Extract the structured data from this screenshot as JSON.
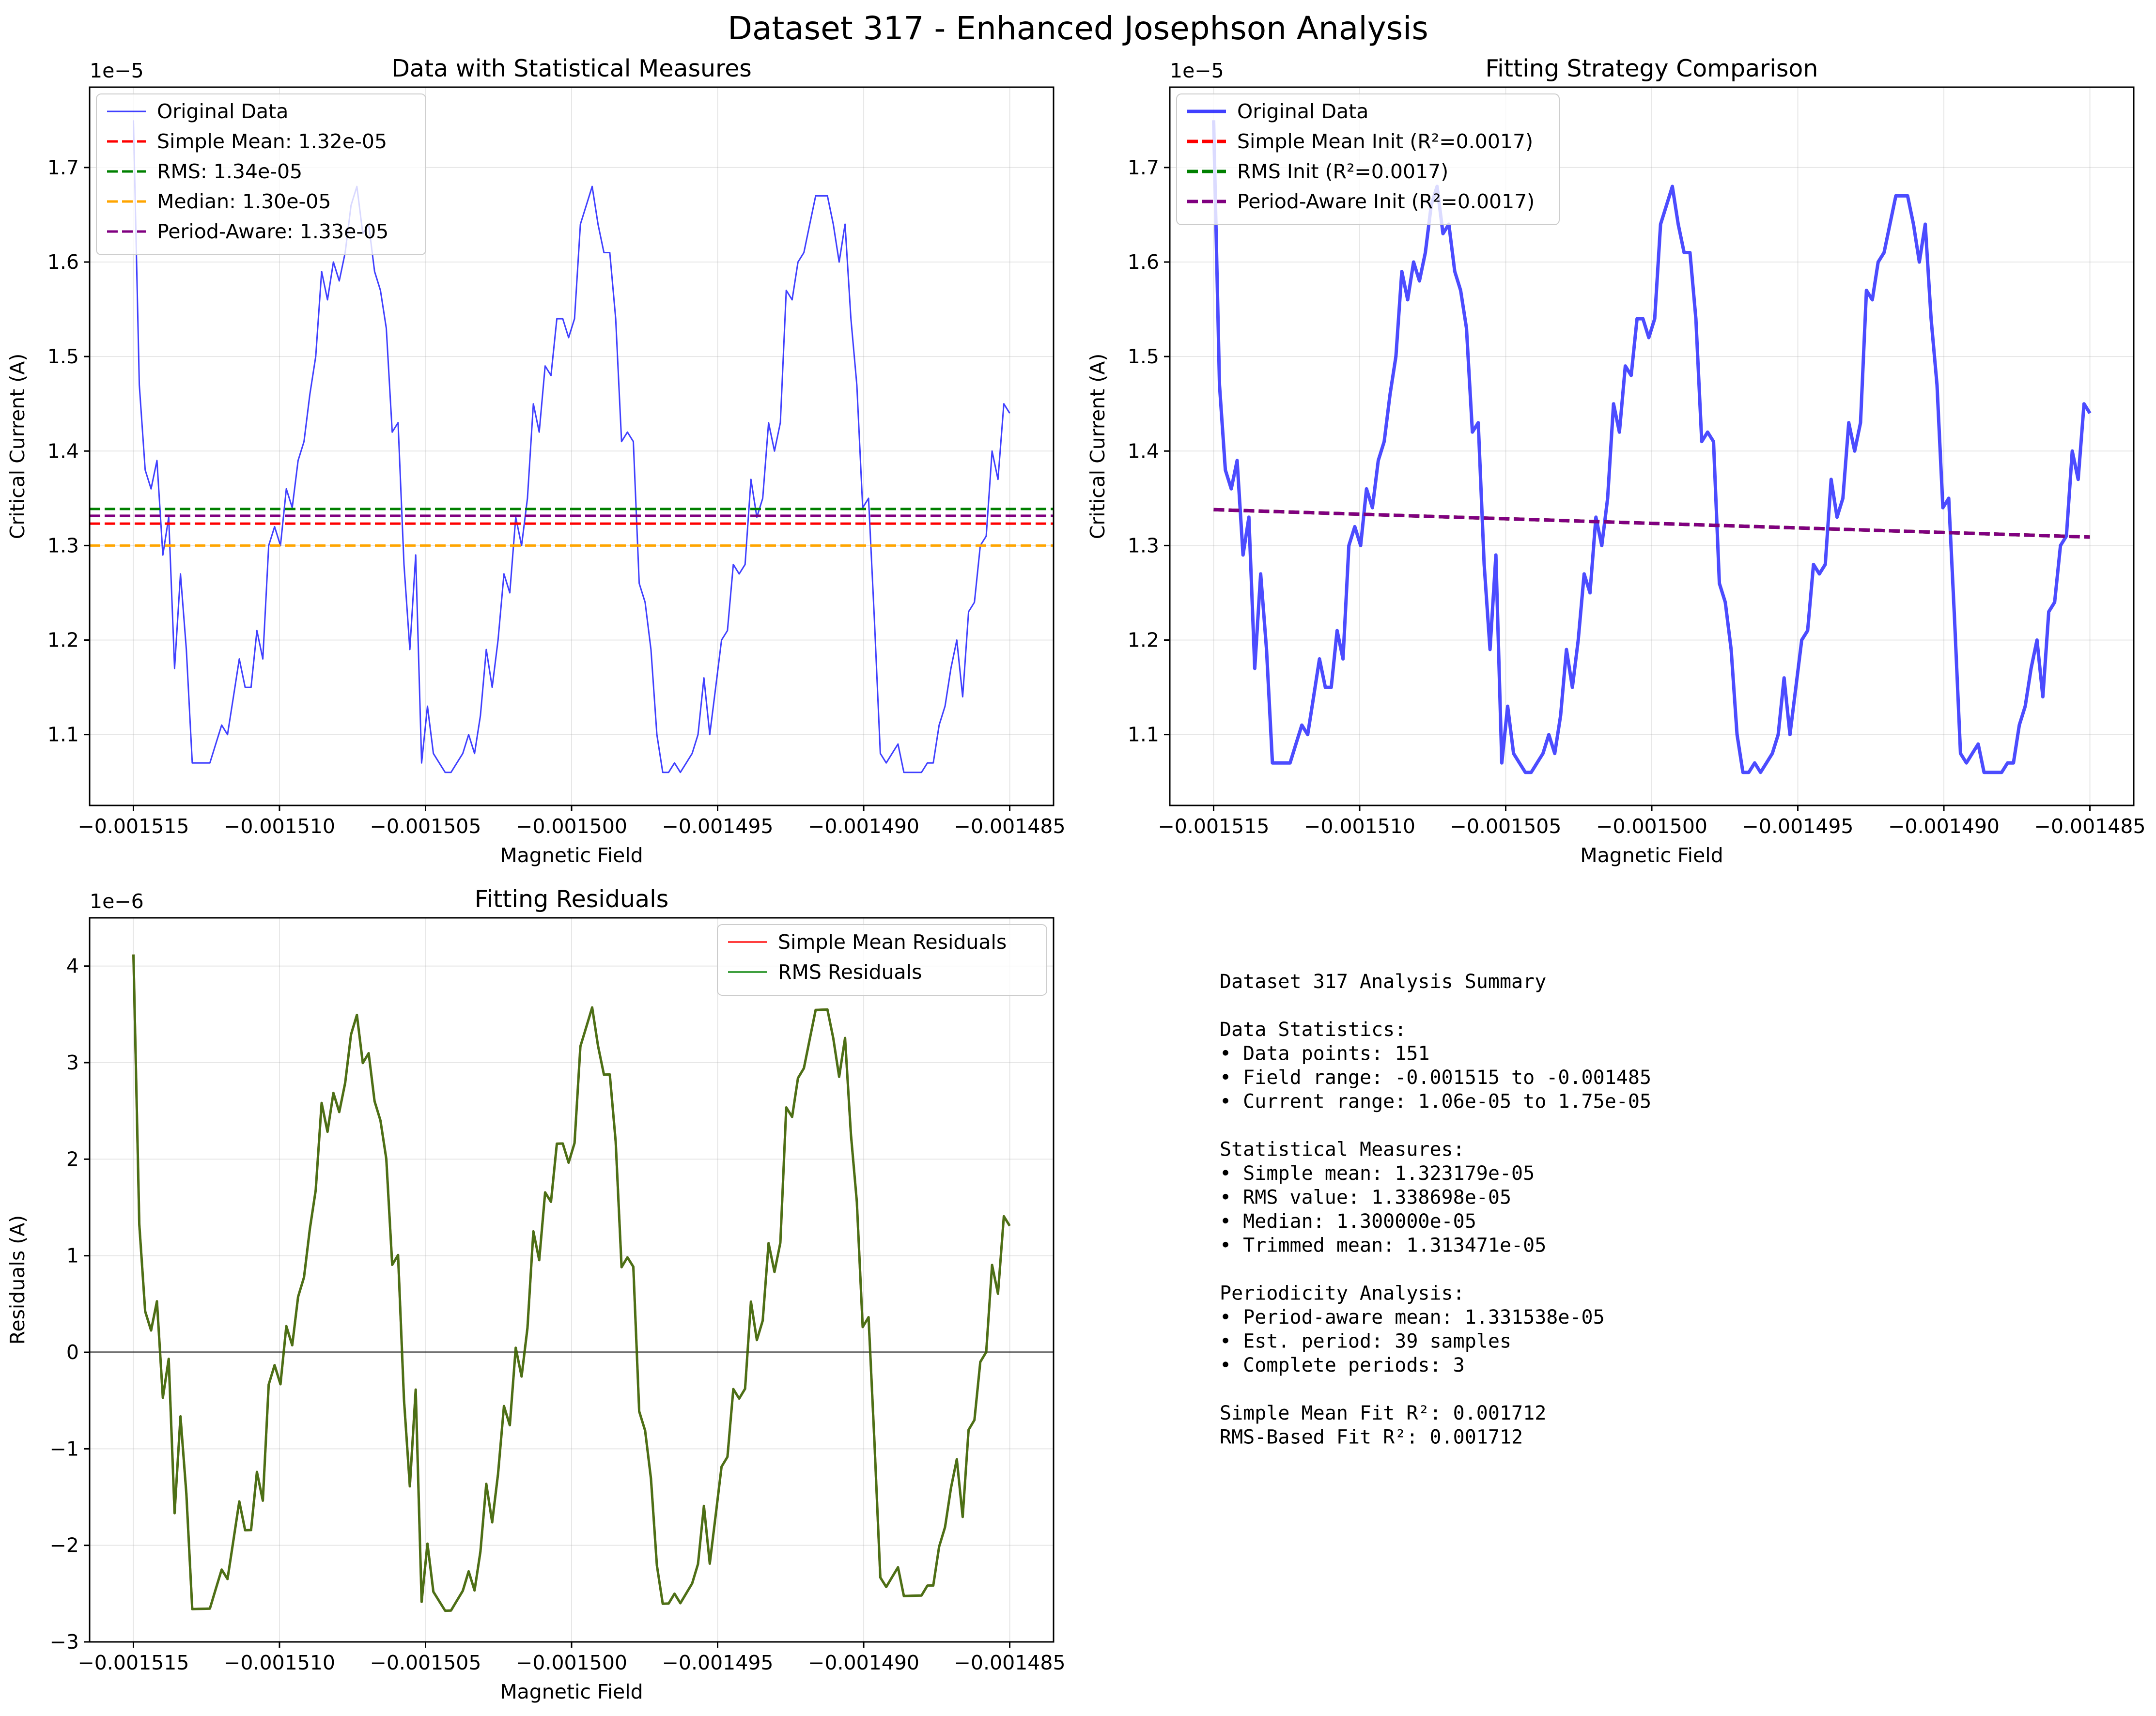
{
  "suptitle": "Dataset 317 - Enhanced Josephson Analysis",
  "colors": {
    "original": "#0000ff",
    "simple_mean": "#ff0000",
    "rms": "#008000",
    "median": "#ffa500",
    "period_aware": "#800080",
    "residual_overlap": "#3f5f00"
  },
  "chart_data": [
    {
      "id": "statistical",
      "type": "line",
      "title": "Data with Statistical Measures",
      "xlabel": "Magnetic Field",
      "ylabel": "Critical Current (A)",
      "offset_text": "1e−5",
      "xlim": [
        -0.0015165,
        -0.0014835
      ],
      "ylim": [
        1.025,
        1.785
      ],
      "x_range": [
        -0.001515,
        -0.001485
      ],
      "num_points": 151,
      "x_ticks": [
        -0.001515,
        -0.00151,
        -0.001505,
        -0.0015,
        -0.001495,
        -0.00149,
        -0.001485
      ],
      "x_tick_labels": [
        "−0.001515",
        "−0.001510",
        "−0.001505",
        "−0.001500",
        "−0.001495",
        "−0.001490",
        "−0.001485"
      ],
      "y_ticks": [
        1.1,
        1.2,
        1.3,
        1.4,
        1.5,
        1.6,
        1.7
      ],
      "y_tick_labels": [
        "1.1",
        "1.2",
        "1.3",
        "1.4",
        "1.5",
        "1.6",
        "1.7"
      ],
      "grid": true,
      "legend_position": "upper left",
      "series": [
        {
          "name": "Original Data",
          "style": "solid",
          "color_key": "original",
          "values": [
            1.75,
            1.47,
            1.38,
            1.36,
            1.39,
            1.29,
            1.33,
            1.17,
            1.27,
            1.19,
            1.07,
            1.07,
            1.07,
            1.07,
            1.09,
            1.11,
            1.1,
            1.14,
            1.18,
            1.15,
            1.15,
            1.21,
            1.18,
            1.3,
            1.32,
            1.3,
            1.36,
            1.34,
            1.39,
            1.41,
            1.46,
            1.5,
            1.59,
            1.56,
            1.6,
            1.58,
            1.61,
            1.66,
            1.68,
            1.63,
            1.64,
            1.59,
            1.57,
            1.53,
            1.42,
            1.43,
            1.28,
            1.19,
            1.29,
            1.07,
            1.13,
            1.08,
            1.07,
            1.06,
            1.06,
            1.07,
            1.08,
            1.1,
            1.08,
            1.12,
            1.19,
            1.15,
            1.2,
            1.27,
            1.25,
            1.33,
            1.3,
            1.35,
            1.45,
            1.42,
            1.49,
            1.48,
            1.54,
            1.54,
            1.52,
            1.54,
            1.64,
            1.66,
            1.68,
            1.64,
            1.61,
            1.61,
            1.54,
            1.41,
            1.42,
            1.41,
            1.26,
            1.24,
            1.19,
            1.1,
            1.06,
            1.06,
            1.07,
            1.06,
            1.07,
            1.08,
            1.1,
            1.16,
            1.1,
            1.15,
            1.2,
            1.21,
            1.28,
            1.27,
            1.28,
            1.37,
            1.33,
            1.35,
            1.43,
            1.4,
            1.43,
            1.57,
            1.56,
            1.6,
            1.61,
            1.64,
            1.67,
            1.67,
            1.67,
            1.64,
            1.6,
            1.64,
            1.54,
            1.47,
            1.34,
            1.35,
            1.22,
            1.08,
            1.07,
            1.08,
            1.09,
            1.06,
            1.06,
            1.06,
            1.06,
            1.07,
            1.07,
            1.11,
            1.13,
            1.17,
            1.2,
            1.14,
            1.23,
            1.24,
            1.3,
            1.31,
            1.4,
            1.37,
            1.45,
            1.44
          ]
        },
        {
          "name": "Simple Mean: 1.32e-05",
          "style": "dashed",
          "color_key": "simple_mean",
          "constant": 1.323179
        },
        {
          "name": "RMS: 1.34e-05",
          "style": "dashed",
          "color_key": "rms",
          "constant": 1.338698
        },
        {
          "name": "Median: 1.30e-05",
          "style": "dashed",
          "color_key": "median",
          "constant": 1.3
        },
        {
          "name": "Period-Aware: 1.33e-05",
          "style": "dashed",
          "color_key": "period_aware",
          "constant": 1.331538
        }
      ]
    },
    {
      "id": "fitting",
      "type": "line",
      "title": "Fitting Strategy Comparison",
      "xlabel": "Magnetic Field",
      "ylabel": "Critical Current (A)",
      "offset_text": "1e−5",
      "xlim": [
        -0.0015165,
        -0.0014835
      ],
      "ylim": [
        1.025,
        1.785
      ],
      "x_ticks": [
        -0.001515,
        -0.00151,
        -0.001505,
        -0.0015,
        -0.001495,
        -0.00149,
        -0.001485
      ],
      "x_tick_labels": [
        "−0.001515",
        "−0.001510",
        "−0.001505",
        "−0.001500",
        "−0.001495",
        "−0.001490",
        "−0.001485"
      ],
      "y_ticks": [
        1.1,
        1.2,
        1.3,
        1.4,
        1.5,
        1.6,
        1.7
      ],
      "y_tick_labels": [
        "1.1",
        "1.2",
        "1.3",
        "1.4",
        "1.5",
        "1.6",
        "1.7"
      ],
      "grid": true,
      "legend_position": "upper left",
      "series": [
        {
          "name": "Original Data",
          "style": "solid-thick",
          "color_key": "original",
          "values_from": "statistical"
        },
        {
          "name": "Simple Mean Init (R²=0.0017)",
          "style": "dashed",
          "color_key": "simple_mean",
          "linear": [
            1.338,
            1.309
          ]
        },
        {
          "name": "RMS Init (R²=0.0017)",
          "style": "dashed",
          "color_key": "rms",
          "linear": [
            1.338,
            1.309
          ]
        },
        {
          "name": "Period-Aware Init (R²=0.0017)",
          "style": "dashed",
          "color_key": "period_aware",
          "linear": [
            1.338,
            1.309
          ]
        }
      ]
    },
    {
      "id": "residuals",
      "type": "line",
      "title": "Fitting Residuals",
      "xlabel": "Magnetic Field",
      "ylabel": "Residuals (A)",
      "offset_text": "1e−6",
      "xlim": [
        -0.0015165,
        -0.0014835
      ],
      "ylim": [
        -3.0,
        4.5
      ],
      "x_ticks": [
        -0.001515,
        -0.00151,
        -0.001505,
        -0.0015,
        -0.001495,
        -0.00149,
        -0.001485
      ],
      "x_tick_labels": [
        "−0.001515",
        "−0.001510",
        "−0.001505",
        "−0.001500",
        "−0.001495",
        "−0.001490",
        "−0.001485"
      ],
      "y_ticks": [
        -3,
        -2,
        -1,
        0,
        1,
        2,
        3,
        4
      ],
      "y_tick_labels": [
        "−3",
        "−2",
        "−1",
        "0",
        "1",
        "2",
        "3",
        "4"
      ],
      "grid": true,
      "legend_position": "upper right",
      "zero_line": true,
      "series": [
        {
          "name": "Simple Mean Residuals",
          "style": "solid",
          "color_key": "simple_mean",
          "residual_of": "statistical",
          "fit_linear": [
            1.338,
            1.309
          ]
        },
        {
          "name": "RMS Residuals",
          "style": "solid",
          "color_key": "rms",
          "residual_of": "statistical",
          "fit_linear": [
            1.338,
            1.309
          ]
        }
      ]
    }
  ],
  "summary": {
    "lines": [
      "Dataset 317 Analysis Summary",
      "",
      "Data Statistics:",
      "• Data points: 151",
      "• Field range: -0.001515 to -0.001485",
      "• Current range: 1.06e-05 to 1.75e-05",
      "",
      "Statistical Measures:",
      "• Simple mean: 1.323179e-05",
      "• RMS value: 1.338698e-05",
      "• Median: 1.300000e-05",
      "• Trimmed mean: 1.313471e-05",
      "",
      "Periodicity Analysis:",
      "• Period-aware mean: 1.331538e-05",
      "• Est. period: 39 samples",
      "• Complete periods: 3",
      "",
      "Simple Mean Fit R²: 0.001712",
      "RMS-Based Fit R²: 0.001712"
    ]
  }
}
